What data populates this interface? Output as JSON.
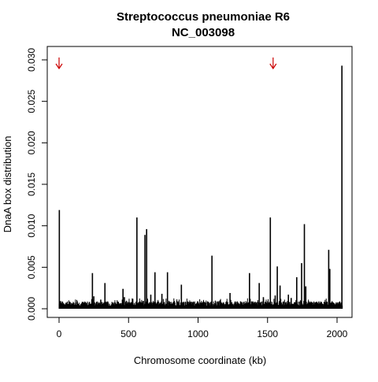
{
  "chart_data": {
    "type": "bar",
    "title": "Streptococcus pneumoniae R6",
    "subtitle": "NC_003098",
    "xlabel": "Chromosome coordinate (kb)",
    "ylabel": "DnaA box distribution",
    "xlim": [
      0,
      2038
    ],
    "ylim": [
      0,
      0.03
    ],
    "xticks": [
      {
        "value": 0,
        "label": "0"
      },
      {
        "value": 500,
        "label": "500"
      },
      {
        "value": 1000,
        "label": "1000"
      },
      {
        "value": 1500,
        "label": "1500"
      },
      {
        "value": 2000,
        "label": "2000"
      }
    ],
    "yticks": [
      {
        "value": 0.0,
        "label": "0.000"
      },
      {
        "value": 0.005,
        "label": "0.005"
      },
      {
        "value": 0.01,
        "label": "0.010"
      },
      {
        "value": 0.015,
        "label": "0.015"
      },
      {
        "value": 0.02,
        "label": "0.020"
      },
      {
        "value": 0.025,
        "label": "0.025"
      },
      {
        "value": 0.03,
        "label": "0.030"
      }
    ],
    "grid": false,
    "legend": "none",
    "bar_color": "#000000",
    "arrow_color": "#cc0000",
    "arrows_x": [
      0,
      1540
    ],
    "baseline_value": 0.0003,
    "baseline_jitter": 0.0006,
    "peaks": [
      {
        "x": 2,
        "y": 0.0119
      },
      {
        "x": 8,
        "y": 0.0009
      },
      {
        "x": 240,
        "y": 0.0043
      },
      {
        "x": 250,
        "y": 0.0015
      },
      {
        "x": 300,
        "y": 0.0011
      },
      {
        "x": 330,
        "y": 0.0031
      },
      {
        "x": 460,
        "y": 0.0024
      },
      {
        "x": 470,
        "y": 0.0014
      },
      {
        "x": 530,
        "y": 0.0012
      },
      {
        "x": 560,
        "y": 0.011
      },
      {
        "x": 618,
        "y": 0.0089
      },
      {
        "x": 630,
        "y": 0.0096
      },
      {
        "x": 660,
        "y": 0.0017
      },
      {
        "x": 690,
        "y": 0.0044
      },
      {
        "x": 740,
        "y": 0.0018
      },
      {
        "x": 780,
        "y": 0.0044
      },
      {
        "x": 880,
        "y": 0.0029
      },
      {
        "x": 1100,
        "y": 0.0064
      },
      {
        "x": 1230,
        "y": 0.0019
      },
      {
        "x": 1370,
        "y": 0.0043
      },
      {
        "x": 1440,
        "y": 0.0031
      },
      {
        "x": 1470,
        "y": 0.0014
      },
      {
        "x": 1520,
        "y": 0.011
      },
      {
        "x": 1555,
        "y": 0.0016
      },
      {
        "x": 1570,
        "y": 0.0051
      },
      {
        "x": 1590,
        "y": 0.0028
      },
      {
        "x": 1650,
        "y": 0.0017
      },
      {
        "x": 1670,
        "y": 0.0013
      },
      {
        "x": 1710,
        "y": 0.0038
      },
      {
        "x": 1745,
        "y": 0.0055
      },
      {
        "x": 1765,
        "y": 0.0102
      },
      {
        "x": 1775,
        "y": 0.0027
      },
      {
        "x": 1940,
        "y": 0.0071
      },
      {
        "x": 1948,
        "y": 0.0048
      },
      {
        "x": 2035,
        "y": 0.0293
      }
    ]
  }
}
